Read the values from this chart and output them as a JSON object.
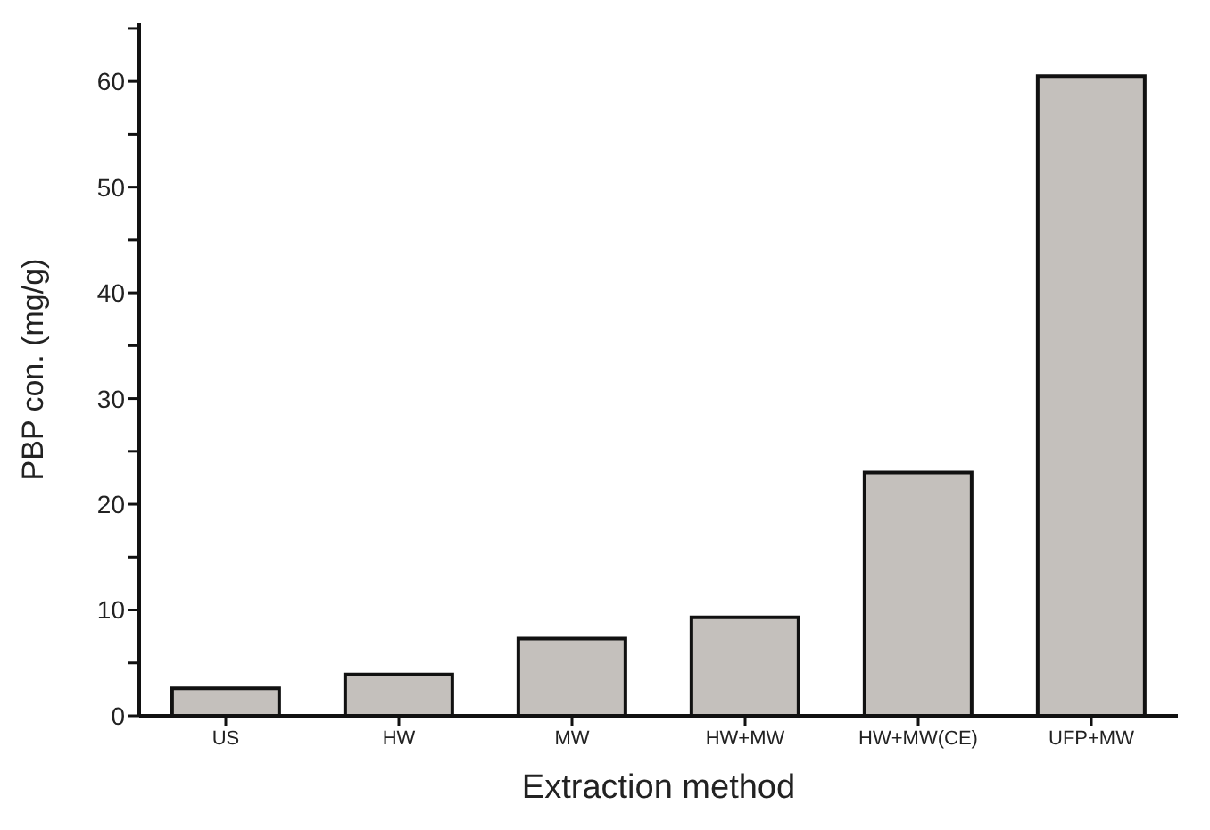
{
  "chart_data": {
    "type": "bar",
    "xlabel": "Extraction method",
    "ylabel": "PBP con. (mg/g)",
    "categories": [
      "US",
      "HW",
      "MW",
      "HW+MW",
      "HW+MW(CE)",
      "UFP+MW"
    ],
    "values": [
      2.6,
      3.9,
      7.3,
      9.3,
      23.0,
      60.5
    ],
    "color": "#c4c0bc",
    "ylim": [
      0,
      65.5
    ],
    "yticks": [
      0,
      {
        "value": 5,
        "label": null
      },
      10,
      {
        "value": 15,
        "label": null
      },
      20,
      {
        "value": 25,
        "label": null
      },
      30,
      {
        "value": 35,
        "label": null
      },
      40,
      {
        "value": 45,
        "label": null
      },
      50,
      {
        "value": 55,
        "label": null
      },
      60,
      {
        "value": 65,
        "label": null
      }
    ],
    "grid": false,
    "legend": false
  }
}
